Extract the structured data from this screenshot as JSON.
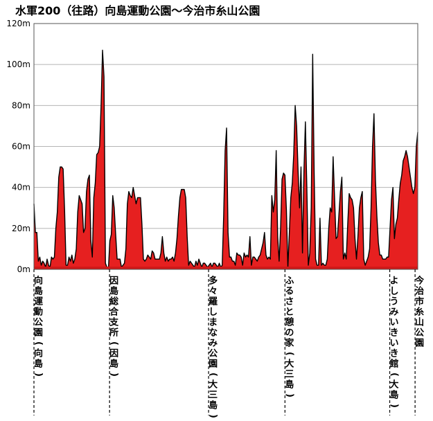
{
  "chart_data": {
    "type": "area",
    "title": "水軍200（往路）向島運動公園～今治市糸山公園",
    "y_unit": "m",
    "ylim": [
      0,
      120
    ],
    "y_ticks": [
      "0m",
      "20m",
      "40m",
      "60m",
      "80m",
      "100m",
      "120m"
    ],
    "grid": "horizontal",
    "series": [
      {
        "values": [
          32,
          18,
          18,
          4,
          6,
          2,
          4,
          3,
          1,
          5,
          2,
          1,
          6,
          5,
          6,
          20,
          28,
          45,
          50,
          50,
          49,
          29,
          2,
          2,
          6,
          4,
          7,
          3,
          5,
          10,
          28,
          36,
          34,
          32,
          18,
          20,
          38,
          44,
          46,
          14,
          6,
          35,
          42,
          56,
          57,
          60,
          80,
          107,
          94,
          3,
          1,
          0,
          14,
          17,
          36,
          30,
          17,
          5,
          5,
          5,
          1,
          2,
          3,
          10,
          32,
          38,
          36,
          35,
          40,
          36,
          32,
          35,
          35,
          35,
          22,
          5,
          4,
          5,
          7,
          6,
          5,
          9,
          8,
          5,
          5,
          5,
          5,
          8,
          16,
          8,
          4,
          6,
          4,
          5,
          5,
          6,
          4,
          8,
          15,
          26,
          35,
          39,
          39,
          39,
          35,
          16,
          2,
          4,
          3,
          2,
          1,
          4,
          2,
          5,
          3,
          1,
          3,
          3,
          2,
          1,
          2,
          3,
          1,
          3,
          3,
          2,
          1,
          3,
          1,
          2,
          26,
          58,
          69,
          18,
          6,
          6,
          4,
          4,
          2,
          8,
          7,
          7,
          6,
          2,
          8,
          6,
          7,
          6,
          16,
          2,
          6,
          6,
          5,
          4,
          6,
          7,
          10,
          13,
          18,
          7,
          5,
          6,
          5,
          36,
          28,
          34,
          58,
          16,
          4,
          20,
          44,
          47,
          46,
          29,
          1,
          18,
          35,
          42,
          56,
          80,
          70,
          48,
          30,
          50,
          8,
          48,
          72,
          40,
          2,
          8,
          30,
          105,
          48,
          5,
          2,
          2,
          25,
          2,
          3,
          2,
          2,
          5,
          20,
          30,
          28,
          55,
          35,
          15,
          16,
          27,
          38,
          45,
          5,
          8,
          5,
          22,
          37,
          35,
          34,
          30,
          15,
          5,
          16,
          30,
          35,
          38,
          5,
          2,
          4,
          6,
          10,
          30,
          60,
          76,
          44,
          26,
          13,
          7,
          7,
          5,
          5,
          5,
          6,
          6,
          20,
          34,
          40,
          15,
          22,
          25,
          34,
          42,
          46,
          53,
          55,
          58,
          55,
          50,
          45,
          40,
          37,
          40,
          60,
          67
        ]
      }
    ],
    "locations": [
      "向島運動公園(向島)",
      "因島総合支所(因島)",
      "多々羅しまなみ公園(大三島)",
      "ふるさと憩の家(大三島)",
      "よしうみいきいき館(大島)",
      "今治市糸山公園"
    ],
    "location_positions": [
      0,
      0.197,
      0.455,
      0.654,
      0.927,
      0.993
    ],
    "colors": {
      "fill": "#e62020",
      "line": "#000000",
      "grid": "#b4b4b4",
      "axis": "#555555",
      "floor": "#d01818"
    }
  }
}
